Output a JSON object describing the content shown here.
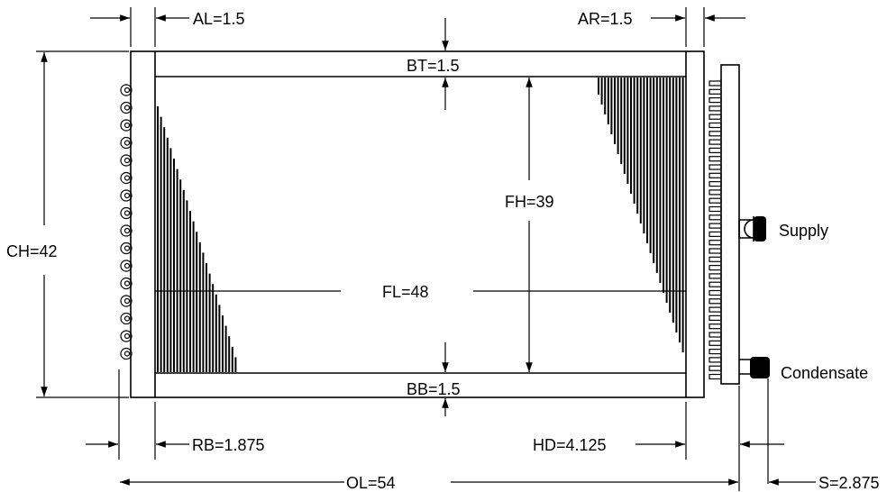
{
  "dimensions": {
    "al": "AL=1.5",
    "ar": "AR=1.5",
    "bt": "BT=1.5",
    "bb": "BB=1.5",
    "ch": "CH=42",
    "fh": "FH=39",
    "fl": "FL=48",
    "rb": "RB=1.875",
    "hd": "HD=4.125",
    "ol": "OL=54",
    "s": "S=2.875"
  },
  "connections": {
    "supply": "Supply",
    "condensate": "Condensate"
  },
  "colors": {
    "line": "#000000",
    "background": "#ffffff"
  }
}
